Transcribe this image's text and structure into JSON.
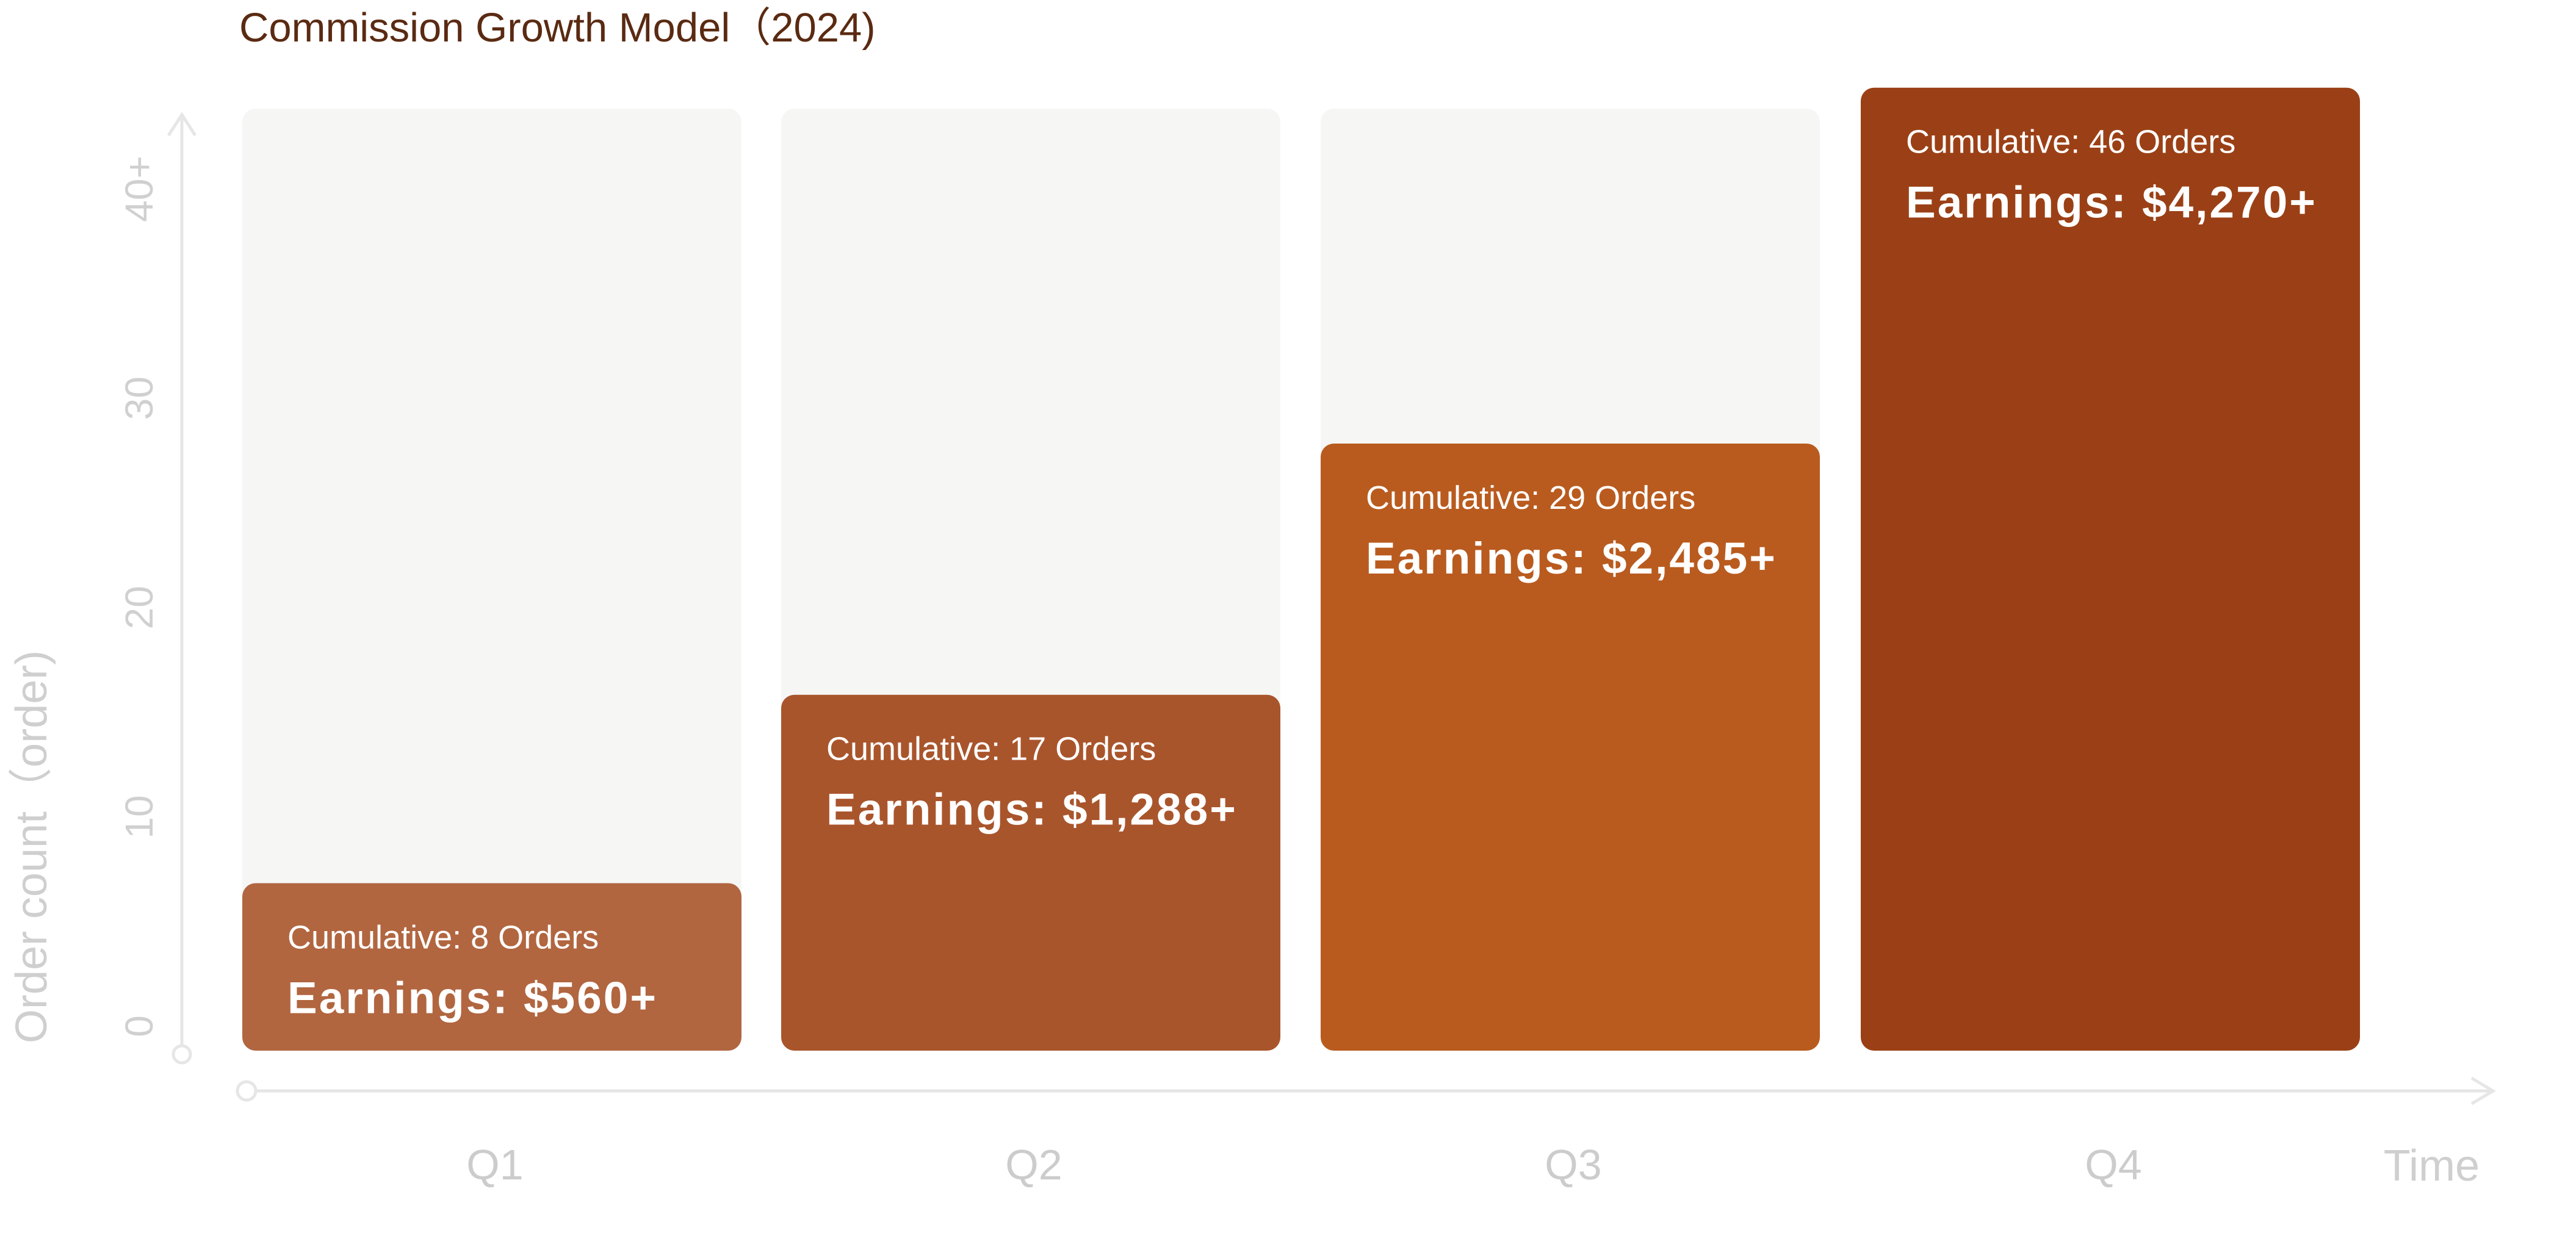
{
  "chart_data": {
    "type": "bar",
    "title": "Commission Growth Model（2024)",
    "xlabel": "Time",
    "ylabel": "Order count（order)",
    "categories": [
      "Q1",
      "Q2",
      "Q3",
      "Q4"
    ],
    "values": [
      8,
      17,
      29,
      46
    ],
    "ylim": [
      0,
      45
    ],
    "yticks": [
      "0",
      "10",
      "20",
      "30",
      "40+"
    ],
    "grid": false,
    "legend": "none",
    "bar_labels": [
      {
        "cumulative": "Cumulative: 8 Orders",
        "earnings": "Earnings: $560+"
      },
      {
        "cumulative": "Cumulative: 17 Orders",
        "earnings": "Earnings: $1,288+"
      },
      {
        "cumulative": "Cumulative: 29 Orders",
        "earnings": "Earnings: $2,485+"
      },
      {
        "cumulative": "Cumulative: 46 Orders",
        "earnings": "Earnings: $4,270+"
      }
    ],
    "colors": {
      "bars": [
        "#b16640",
        "#a9552c",
        "#b95b1f",
        "#9b4016"
      ],
      "track": "#f6f6f5",
      "axis": "#e6e6e6",
      "title": "#5a2a12",
      "labels": "#cccccc"
    }
  }
}
